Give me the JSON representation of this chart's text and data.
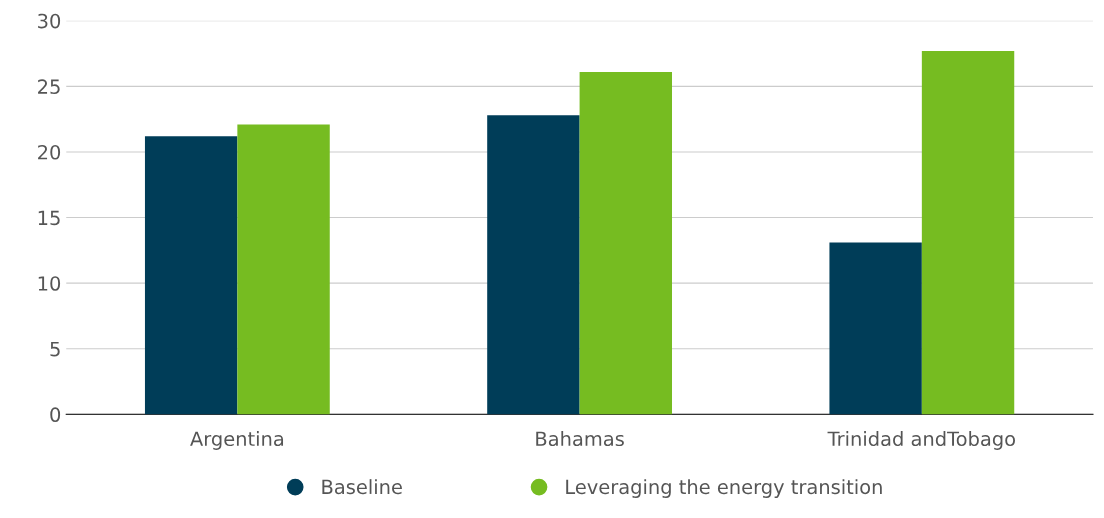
{
  "chart_data": {
    "type": "bar",
    "categories": [
      "Argentina",
      "Bahamas",
      "Trinidad andTobago"
    ],
    "series": [
      {
        "name": "Baseline",
        "color": "#003d58",
        "values": [
          21.2,
          22.8,
          13.1
        ]
      },
      {
        "name": "Leveraging the energy transition",
        "color": "#76bc21",
        "values": [
          22.1,
          26.1,
          27.7
        ]
      }
    ],
    "ylim": [
      0,
      30
    ],
    "yticks": [
      0,
      5,
      10,
      15,
      20,
      25,
      30
    ],
    "grid": "y",
    "legend": "bottom"
  }
}
